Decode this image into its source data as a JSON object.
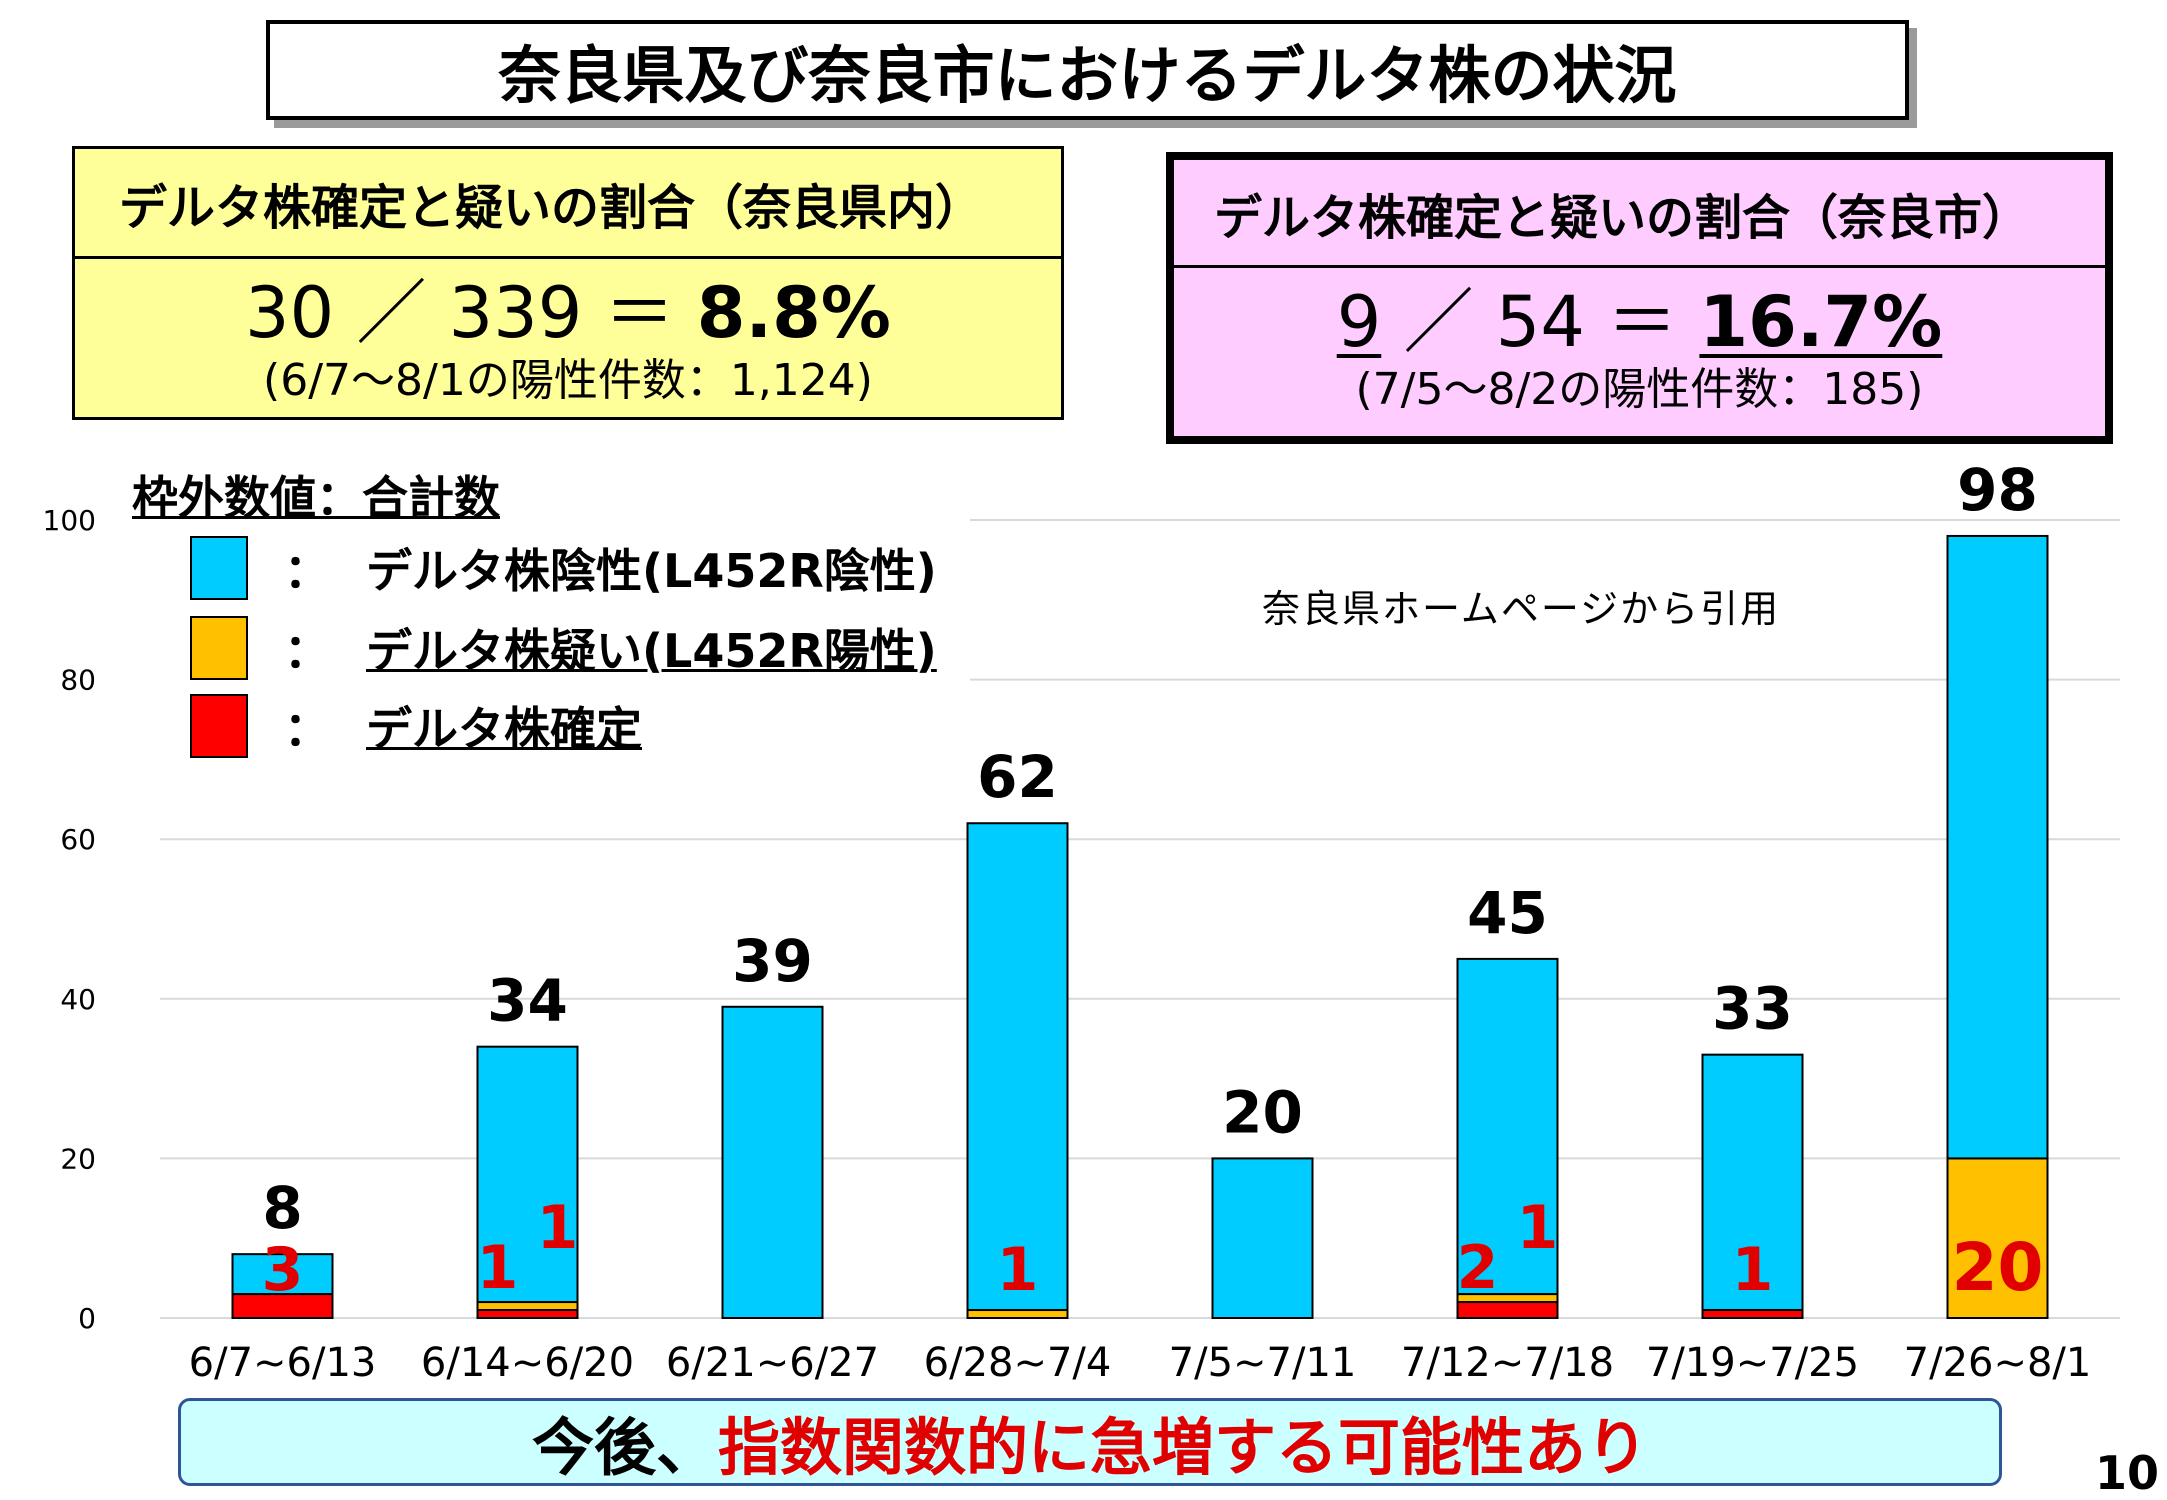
{
  "title": "奈良県及び奈良市におけるデルタ株の状況",
  "prefecture_ratio": {
    "heading": "デルタ株確定と疑いの割合（奈良県内）",
    "numerator": "30",
    "slash": "／",
    "denominator": "339",
    "equals": "＝",
    "percent": "8.8%",
    "note": "(6/7～8/1の陽性件数：1,124)"
  },
  "city_ratio": {
    "heading": "デルタ株確定と疑いの割合（奈良市）",
    "numerator": "9",
    "slash": "／",
    "denominator": "54",
    "equals": "＝",
    "percent": "16.7%",
    "note": "(7/5～8/2の陽性件数：185)"
  },
  "legend": {
    "title": "枠外数値：合計数",
    "colon": "：",
    "items": [
      {
        "label": "デルタ株陰性(L452R陰性)",
        "color": "#00ccff"
      },
      {
        "label": "デルタ株疑い(L452R陽性)",
        "color": "#ffc000"
      },
      {
        "label": "デルタ株確定",
        "color": "#ff0000"
      }
    ]
  },
  "source_note": "奈良県ホームページから引用",
  "bottom_message": {
    "prefix": "今後、",
    "highlight": "指数関数的に急増する可能性あり"
  },
  "page_number": "10",
  "chart_data": {
    "type": "bar",
    "stacked": true,
    "categories": [
      "6/7~6/13",
      "6/14~6/20",
      "6/21~6/27",
      "6/28~7/4",
      "7/5~7/11",
      "7/12~7/18",
      "7/19~7/25",
      "7/26~8/1"
    ],
    "series": [
      {
        "name": "デルタ株確定",
        "color": "#ff0000",
        "values": [
          3,
          1,
          0,
          0,
          0,
          2,
          1,
          0
        ]
      },
      {
        "name": "デルタ株疑い(L452R陽性)",
        "color": "#ffc000",
        "values": [
          0,
          1,
          0,
          1,
          0,
          1,
          0,
          20
        ]
      },
      {
        "name": "デルタ株陰性(L452R陰性)",
        "color": "#00ccff",
        "values": [
          5,
          32,
          39,
          61,
          20,
          42,
          32,
          78
        ]
      }
    ],
    "totals": [
      8,
      34,
      39,
      62,
      20,
      45,
      33,
      98
    ],
    "inner_labels": [
      [
        {
          "text": "3",
          "series": "デルタ株確定"
        }
      ],
      [
        {
          "text": "1",
          "series": "デルタ株確定"
        },
        {
          "text": "1",
          "series": "デルタ株疑い(L452R陽性)"
        }
      ],
      [],
      [
        {
          "text": "1",
          "series": "デルタ株疑い(L452R陽性)"
        }
      ],
      [],
      [
        {
          "text": "2",
          "series": "デルタ株確定"
        },
        {
          "text": "1",
          "series": "デルタ株疑い(L452R陽性)"
        }
      ],
      [
        {
          "text": "1",
          "series": "デルタ株確定"
        }
      ],
      [
        {
          "text": "20",
          "series": "デルタ株疑い(L452R陽性)"
        }
      ]
    ],
    "yticks": [
      0,
      20,
      40,
      60,
      80,
      100
    ],
    "ylim": [
      0,
      100
    ],
    "grid": true
  }
}
